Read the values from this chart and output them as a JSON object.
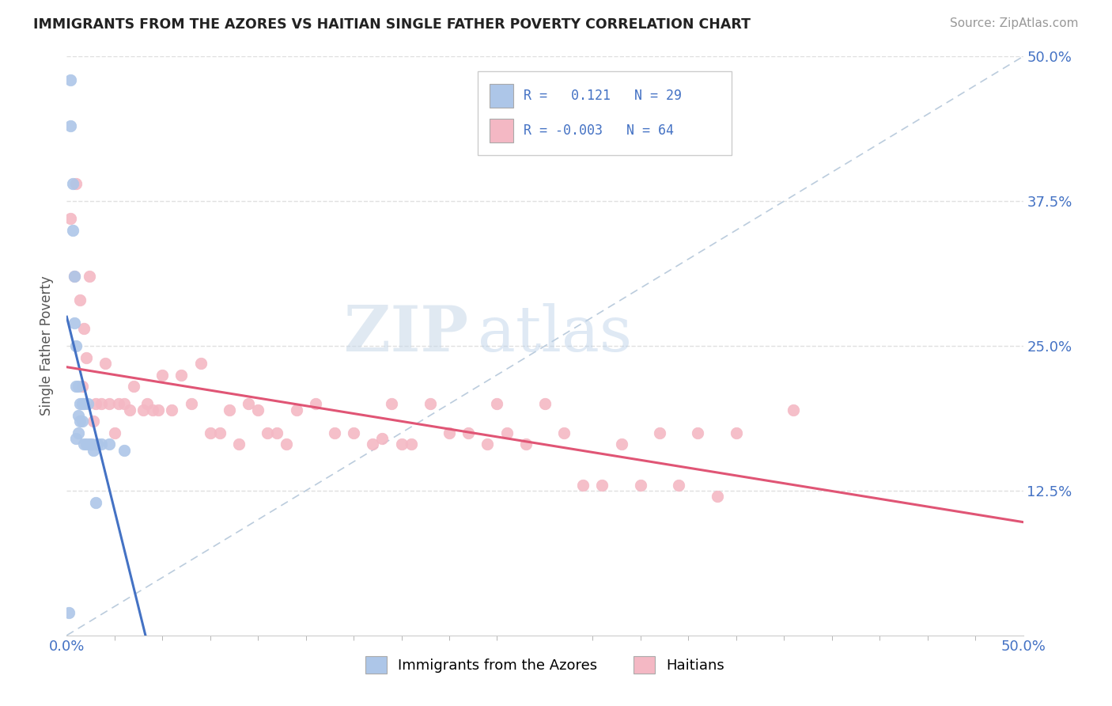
{
  "title": "IMMIGRANTS FROM THE AZORES VS HAITIAN SINGLE FATHER POVERTY CORRELATION CHART",
  "source": "Source: ZipAtlas.com",
  "ylabel": "Single Father Poverty",
  "xlim": [
    0.0,
    0.5
  ],
  "ylim": [
    0.0,
    0.5
  ],
  "blue_color": "#adc6e8",
  "pink_color": "#f4b8c4",
  "line_blue": "#4472c4",
  "line_pink": "#e05575",
  "diag_color": "#bbccdd",
  "grid_color": "#e0e0e0",
  "azores_x": [
    0.001,
    0.002,
    0.002,
    0.003,
    0.003,
    0.004,
    0.004,
    0.005,
    0.005,
    0.005,
    0.006,
    0.006,
    0.006,
    0.007,
    0.007,
    0.008,
    0.008,
    0.009,
    0.009,
    0.01,
    0.011,
    0.012,
    0.013,
    0.014,
    0.015,
    0.016,
    0.018,
    0.022,
    0.03
  ],
  "azores_y": [
    0.02,
    0.48,
    0.44,
    0.39,
    0.35,
    0.31,
    0.27,
    0.25,
    0.215,
    0.17,
    0.215,
    0.19,
    0.175,
    0.2,
    0.185,
    0.2,
    0.185,
    0.2,
    0.165,
    0.165,
    0.2,
    0.165,
    0.165,
    0.16,
    0.115,
    0.165,
    0.165,
    0.165,
    0.16
  ],
  "haiti_x": [
    0.002,
    0.004,
    0.005,
    0.007,
    0.008,
    0.009,
    0.01,
    0.012,
    0.014,
    0.015,
    0.018,
    0.02,
    0.022,
    0.025,
    0.027,
    0.03,
    0.033,
    0.035,
    0.04,
    0.042,
    0.045,
    0.048,
    0.05,
    0.055,
    0.06,
    0.065,
    0.07,
    0.075,
    0.08,
    0.085,
    0.09,
    0.095,
    0.1,
    0.105,
    0.11,
    0.115,
    0.12,
    0.13,
    0.14,
    0.15,
    0.16,
    0.165,
    0.17,
    0.175,
    0.18,
    0.19,
    0.2,
    0.21,
    0.22,
    0.225,
    0.23,
    0.24,
    0.25,
    0.26,
    0.27,
    0.28,
    0.29,
    0.3,
    0.31,
    0.32,
    0.33,
    0.34,
    0.35,
    0.38
  ],
  "haiti_y": [
    0.36,
    0.31,
    0.39,
    0.29,
    0.215,
    0.265,
    0.24,
    0.31,
    0.185,
    0.2,
    0.2,
    0.235,
    0.2,
    0.175,
    0.2,
    0.2,
    0.195,
    0.215,
    0.195,
    0.2,
    0.195,
    0.195,
    0.225,
    0.195,
    0.225,
    0.2,
    0.235,
    0.175,
    0.175,
    0.195,
    0.165,
    0.2,
    0.195,
    0.175,
    0.175,
    0.165,
    0.195,
    0.2,
    0.175,
    0.175,
    0.165,
    0.17,
    0.2,
    0.165,
    0.165,
    0.2,
    0.175,
    0.175,
    0.165,
    0.2,
    0.175,
    0.165,
    0.2,
    0.175,
    0.13,
    0.13,
    0.165,
    0.13,
    0.175,
    0.13,
    0.175,
    0.12,
    0.175,
    0.195
  ]
}
